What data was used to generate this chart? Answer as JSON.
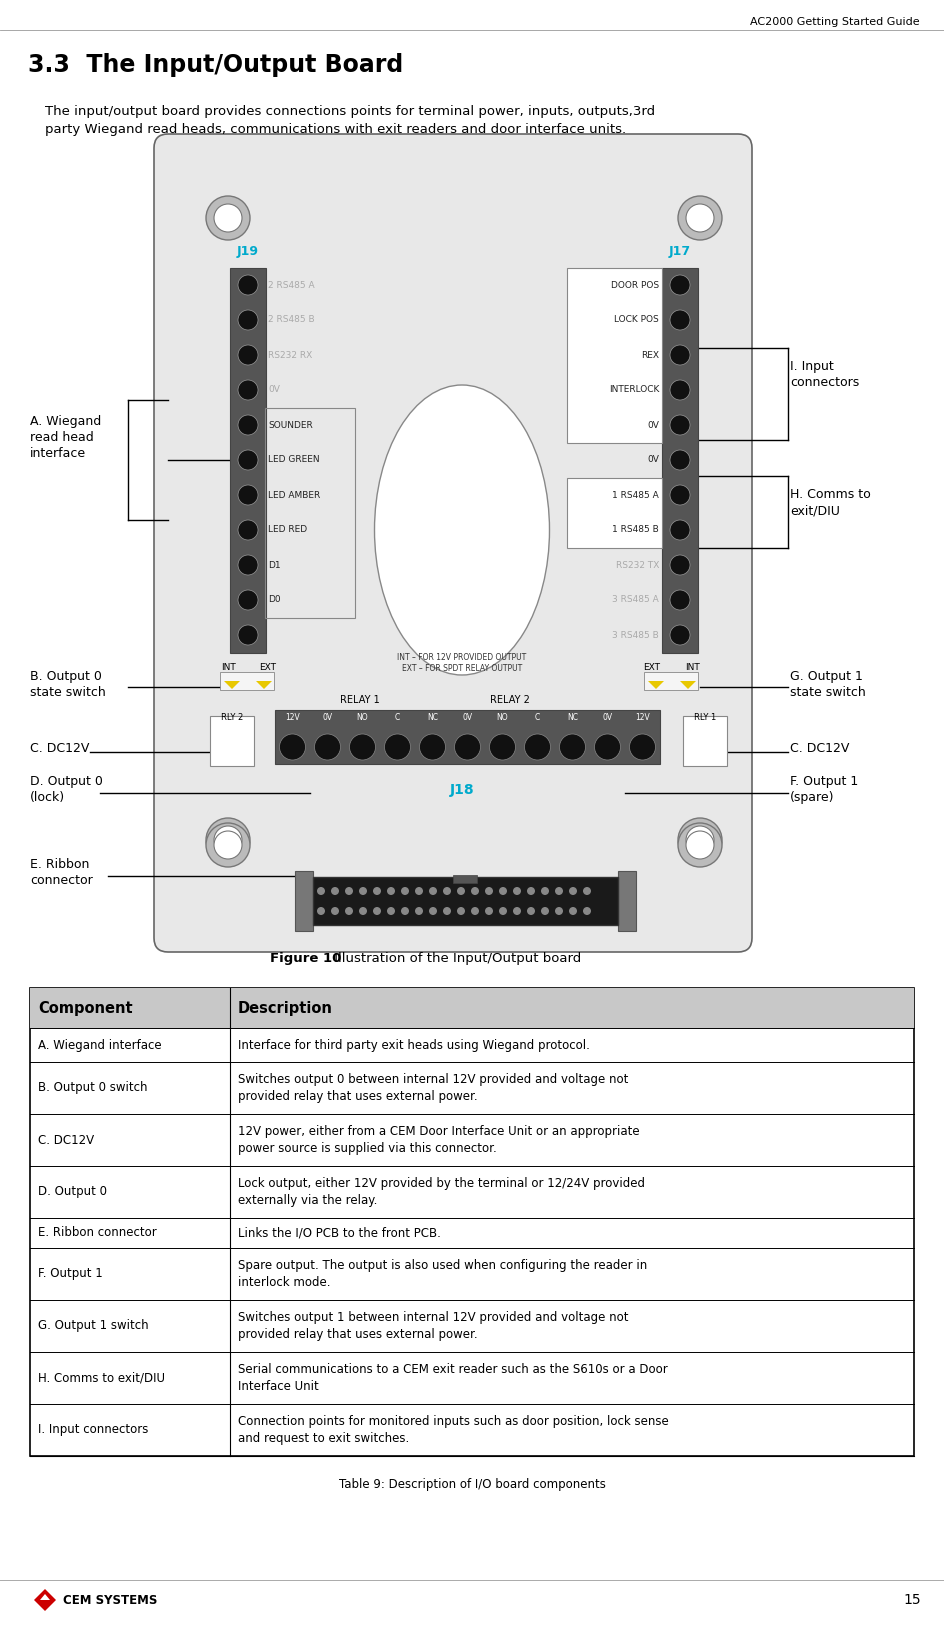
{
  "header_text": "AC2000 Getting Started Guide",
  "section_title": "3.3  The Input/Output Board",
  "intro_text": "The input/output board provides connections points for terminal power, inputs, outputs,3rd\nparty Wiegand read heads, communications with exit readers and door interface units.",
  "figure_caption_bold": "Figure 10",
  "figure_caption_normal": " Illustration of the Input/Output board",
  "table_caption": "Table 9: Description of I/O board components",
  "table_header": [
    "Component",
    "Description"
  ],
  "table_rows": [
    [
      "A. Wiegand interface",
      "Interface for third party exit heads using Wiegand protocol."
    ],
    [
      "B. Output 0 switch",
      "Switches output 0 between internal 12V provided and voltage not\nprovided relay that uses external power."
    ],
    [
      "C. DC12V",
      "12V power, either from a CEM Door Interface Unit or an appropriate\npower source is supplied via this connector."
    ],
    [
      "D. Output 0",
      "Lock output, either 12V provided by the terminal or 12/24V provided\nexternally via the relay."
    ],
    [
      "E. Ribbon connector",
      "Links the I/O PCB to the front PCB."
    ],
    [
      "F. Output 1",
      "Spare output. The output is also used when configuring the reader in\ninterlock mode."
    ],
    [
      "G. Output 1 switch",
      "Switches output 1 between internal 12V provided and voltage not\nprovided relay that uses external power."
    ],
    [
      "H. Comms to exit/DIU",
      "Serial communications to a CEM exit reader such as the S610s or a Door\nInterface Unit"
    ],
    [
      "I. Input connectors",
      "Connection points for monitored inputs such as door position, lock sense\nand request to exit switches."
    ]
  ],
  "bg_color": "#ffffff",
  "table_header_bg": "#c8c8c8",
  "table_border_color": "#000000",
  "board_bg": "#e8e8e8",
  "connector_dark": "#555555",
  "connector_pin": "#111111",
  "yellow_color": "#e8c800",
  "cyan_label": "#00aacc",
  "page_number": "15",
  "footer_text": "CEM SYSTEMS",
  "j19_labels": [
    "2 RS485 A",
    "2 RS485 B",
    "RS232 RX",
    "0V",
    "SOUNDER",
    "LED GREEN",
    "LED AMBER",
    "LED RED",
    "D1",
    "D0",
    ""
  ],
  "j17_labels_input": [
    "DOOR POS",
    "LOCK POS",
    "REX",
    "INTERLOCK",
    "0V"
  ],
  "j17_labels_comms": [
    "1 RS485 A",
    "1 RS485 B",
    "RS232 TX",
    "3 RS485 A",
    "3 RS485 B"
  ],
  "relay_labels": [
    "12V",
    "0V",
    "NO",
    "C",
    "NC",
    "0V",
    "NO",
    "C",
    "NC",
    "0V",
    "12V"
  ],
  "note_text": "INT – FOR 12V PROVIDED OUTPUT\nEXT – FOR SPDT RELAY OUTPUT"
}
